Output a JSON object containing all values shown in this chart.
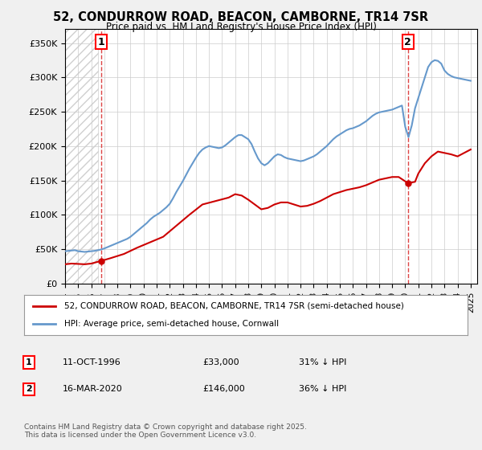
{
  "title": "52, CONDURROW ROAD, BEACON, CAMBORNE, TR14 7SR",
  "subtitle": "Price paid vs. HM Land Registry's House Price Index (HPI)",
  "background_color": "#f0f0f0",
  "plot_bg_color": "#ffffff",
  "ylabel": "",
  "ylim": [
    0,
    370000
  ],
  "yticks": [
    0,
    50000,
    100000,
    150000,
    200000,
    250000,
    300000,
    350000
  ],
  "ytick_labels": [
    "£0",
    "£50K",
    "£100K",
    "£150K",
    "£200K",
    "£250K",
    "£300K",
    "£350K"
  ],
  "xlim_start": 1994.0,
  "xlim_end": 2025.5,
  "legend_entry1": "52, CONDURROW ROAD, BEACON, CAMBORNE, TR14 7SR (semi-detached house)",
  "legend_entry2": "HPI: Average price, semi-detached house, Cornwall",
  "annotation1_label": "1",
  "annotation1_date": "11-OCT-1996",
  "annotation1_price": "£33,000",
  "annotation1_hpi": "31% ↓ HPI",
  "annotation2_label": "2",
  "annotation2_date": "16-MAR-2020",
  "annotation2_price": "£146,000",
  "annotation2_hpi": "36% ↓ HPI",
  "footer": "Contains HM Land Registry data © Crown copyright and database right 2025.\nThis data is licensed under the Open Government Licence v3.0.",
  "sale1_x": 1996.78,
  "sale1_y": 33000,
  "sale2_x": 2020.21,
  "sale2_y": 146000,
  "vline1_x": 1996.78,
  "vline2_x": 2020.21,
  "red_line_color": "#cc0000",
  "blue_line_color": "#6699cc",
  "sale_dot_color": "#cc0000",
  "vline_color": "#dd4444",
  "hpi_data_x": [
    1994.0,
    1994.25,
    1994.5,
    1994.75,
    1995.0,
    1995.25,
    1995.5,
    1995.75,
    1996.0,
    1996.25,
    1996.5,
    1996.75,
    1997.0,
    1997.25,
    1997.5,
    1997.75,
    1998.0,
    1998.25,
    1998.5,
    1998.75,
    1999.0,
    1999.25,
    1999.5,
    1999.75,
    2000.0,
    2000.25,
    2000.5,
    2000.75,
    2001.0,
    2001.25,
    2001.5,
    2001.75,
    2002.0,
    2002.25,
    2002.5,
    2002.75,
    2003.0,
    2003.25,
    2003.5,
    2003.75,
    2004.0,
    2004.25,
    2004.5,
    2004.75,
    2005.0,
    2005.25,
    2005.5,
    2005.75,
    2006.0,
    2006.25,
    2006.5,
    2006.75,
    2007.0,
    2007.25,
    2007.5,
    2007.75,
    2008.0,
    2008.25,
    2008.5,
    2008.75,
    2009.0,
    2009.25,
    2009.5,
    2009.75,
    2010.0,
    2010.25,
    2010.5,
    2010.75,
    2011.0,
    2011.25,
    2011.5,
    2011.75,
    2012.0,
    2012.25,
    2012.5,
    2012.75,
    2013.0,
    2013.25,
    2013.5,
    2013.75,
    2014.0,
    2014.25,
    2014.5,
    2014.75,
    2015.0,
    2015.25,
    2015.5,
    2015.75,
    2016.0,
    2016.25,
    2016.5,
    2016.75,
    2017.0,
    2017.25,
    2017.5,
    2017.75,
    2018.0,
    2018.25,
    2018.5,
    2018.75,
    2019.0,
    2019.25,
    2019.5,
    2019.75,
    2020.0,
    2020.25,
    2020.5,
    2020.75,
    2021.0,
    2021.25,
    2021.5,
    2021.75,
    2022.0,
    2022.25,
    2022.5,
    2022.75,
    2023.0,
    2023.25,
    2023.5,
    2023.75,
    2024.0,
    2024.25,
    2024.5,
    2024.75,
    2025.0
  ],
  "hpi_data_y": [
    47000,
    47500,
    48000,
    48500,
    47000,
    46500,
    46000,
    46500,
    47000,
    47500,
    48500,
    49500,
    51000,
    53000,
    55000,
    57000,
    59000,
    61000,
    63000,
    65000,
    68000,
    72000,
    76000,
    80000,
    84000,
    88000,
    93000,
    97000,
    100000,
    103000,
    107000,
    111000,
    116000,
    124000,
    133000,
    141000,
    149000,
    158000,
    167000,
    175000,
    183000,
    190000,
    195000,
    198000,
    200000,
    199000,
    198000,
    197000,
    198000,
    201000,
    205000,
    209000,
    213000,
    216000,
    216000,
    213000,
    210000,
    203000,
    192000,
    182000,
    175000,
    172000,
    175000,
    180000,
    185000,
    188000,
    187000,
    184000,
    182000,
    181000,
    180000,
    179000,
    178000,
    179000,
    181000,
    183000,
    185000,
    188000,
    192000,
    196000,
    200000,
    205000,
    210000,
    214000,
    217000,
    220000,
    223000,
    225000,
    226000,
    228000,
    230000,
    233000,
    236000,
    240000,
    244000,
    247000,
    249000,
    250000,
    251000,
    252000,
    253000,
    255000,
    257000,
    259000,
    228000,
    213000,
    230000,
    255000,
    270000,
    285000,
    300000,
    315000,
    322000,
    325000,
    324000,
    320000,
    310000,
    305000,
    302000,
    300000,
    299000,
    298000,
    297000,
    296000,
    295000
  ],
  "red_data_x": [
    1994.0,
    1994.5,
    1995.0,
    1995.5,
    1996.0,
    1996.78,
    1997.5,
    1998.5,
    1999.5,
    2000.5,
    2001.5,
    2002.5,
    2003.5,
    2004.5,
    2005.5,
    2006.5,
    2007.0,
    2007.5,
    2008.0,
    2008.5,
    2009.0,
    2009.5,
    2010.0,
    2010.5,
    2011.0,
    2011.5,
    2012.0,
    2012.5,
    2013.0,
    2013.5,
    2014.0,
    2014.5,
    2015.0,
    2015.5,
    2016.0,
    2016.5,
    2017.0,
    2017.5,
    2018.0,
    2018.5,
    2019.0,
    2019.5,
    2020.21,
    2020.75,
    2021.0,
    2021.5,
    2022.0,
    2022.5,
    2023.0,
    2023.5,
    2024.0,
    2024.5,
    2025.0
  ],
  "red_data_y": [
    28000,
    29000,
    28500,
    28000,
    29000,
    33000,
    37000,
    43000,
    52000,
    60000,
    68000,
    84000,
    100000,
    115000,
    120000,
    125000,
    130000,
    128000,
    122000,
    115000,
    108000,
    110000,
    115000,
    118000,
    118000,
    115000,
    112000,
    113000,
    116000,
    120000,
    125000,
    130000,
    133000,
    136000,
    138000,
    140000,
    143000,
    147000,
    151000,
    153000,
    155000,
    155000,
    146000,
    148000,
    160000,
    175000,
    185000,
    192000,
    190000,
    188000,
    185000,
    190000,
    195000
  ]
}
